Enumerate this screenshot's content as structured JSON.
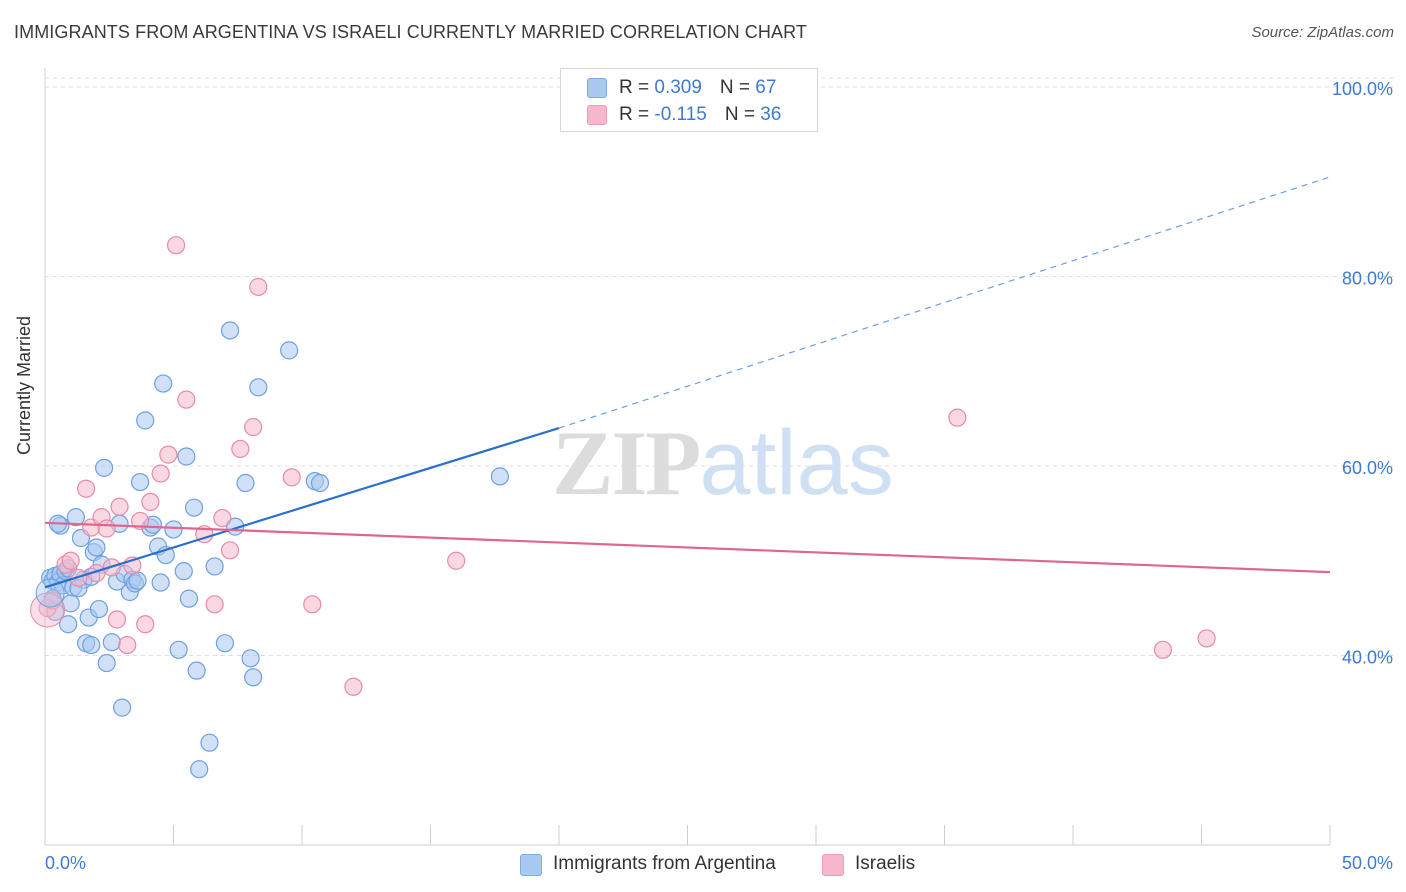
{
  "title": "IMMIGRANTS FROM ARGENTINA VS ISRAELI CURRENTLY MARRIED CORRELATION CHART",
  "source": "Source: ZipAtlas.com",
  "watermark": {
    "part1": "ZIP",
    "part2": "atlas"
  },
  "legend": {
    "rows": [
      {
        "r_label": "R = ",
        "r_value": "0.309",
        "n_label": "N = ",
        "n_value": "67",
        "color": "#a9c9f0"
      },
      {
        "r_label": "R = ",
        "r_value": "-0.115",
        "n_label": "N = ",
        "n_value": "36",
        "color": "#f5b8cb"
      }
    ]
  },
  "bottom_legend": [
    {
      "label": "Immigrants from Argentina",
      "color": "#a9c9f0"
    },
    {
      "label": "Israelis",
      "color": "#f5b8cb"
    }
  ],
  "chart_data": {
    "type": "scatter",
    "title": "IMMIGRANTS FROM ARGENTINA VS ISRAELI CURRENTLY MARRIED CORRELATION CHART",
    "ylabel": "Currently Married",
    "xlabel": "",
    "xlim": [
      0,
      50
    ],
    "ylim": [
      20,
      102
    ],
    "x_tick_labels": [
      "0.0%",
      "50.0%"
    ],
    "y_ticks": [
      40,
      60,
      80,
      100
    ],
    "y_tick_labels": [
      "40.0%",
      "60.0%",
      "80.0%",
      "100.0%"
    ],
    "grid": true,
    "legend_position": "top-center",
    "series": [
      {
        "name": "Immigrants from Argentina",
        "color": "#6fa0e0",
        "fill": "#a9c9f0",
        "trend": {
          "x0": 0,
          "y0": 47.2,
          "x1": 20,
          "y1": 64.0,
          "dashed_to_x": 50,
          "dashed_to_y": 90.5,
          "color": "#2b6fce"
        },
        "points": [
          [
            0.2,
            48.2
          ],
          [
            0.3,
            47.9
          ],
          [
            0.4,
            48.4
          ],
          [
            0.5,
            47.7
          ],
          [
            0.6,
            48.6
          ],
          [
            0.7,
            47.4
          ],
          [
            0.8,
            48.9
          ],
          [
            0.9,
            49.2
          ],
          [
            0.3,
            46.0
          ],
          [
            0.4,
            44.6
          ],
          [
            0.6,
            53.7
          ],
          [
            0.9,
            43.3
          ],
          [
            1.0,
            45.5
          ],
          [
            1.1,
            47.2
          ],
          [
            1.2,
            54.6
          ],
          [
            1.4,
            52.4
          ],
          [
            1.5,
            48.0
          ],
          [
            1.6,
            41.3
          ],
          [
            1.7,
            44.0
          ],
          [
            1.8,
            41.1
          ],
          [
            1.9,
            50.9
          ],
          [
            2.0,
            51.4
          ],
          [
            2.1,
            44.9
          ],
          [
            2.3,
            59.8
          ],
          [
            2.4,
            39.2
          ],
          [
            2.6,
            41.4
          ],
          [
            2.8,
            47.8
          ],
          [
            2.9,
            53.9
          ],
          [
            3.1,
            48.6
          ],
          [
            3.3,
            46.7
          ],
          [
            3.4,
            48.0
          ],
          [
            3.5,
            47.6
          ],
          [
            3.6,
            47.9
          ],
          [
            3.7,
            58.3
          ],
          [
            3.9,
            64.8
          ],
          [
            4.1,
            53.5
          ],
          [
            4.2,
            53.8
          ],
          [
            4.4,
            51.5
          ],
          [
            4.5,
            47.7
          ],
          [
            4.6,
            68.7
          ],
          [
            4.7,
            50.6
          ],
          [
            5.0,
            53.3
          ],
          [
            5.2,
            40.6
          ],
          [
            5.4,
            48.9
          ],
          [
            5.5,
            61.0
          ],
          [
            5.6,
            46.0
          ],
          [
            5.8,
            55.6
          ],
          [
            5.9,
            38.4
          ],
          [
            6.0,
            28.0
          ],
          [
            6.4,
            30.8
          ],
          [
            6.6,
            49.4
          ],
          [
            7.0,
            41.3
          ],
          [
            7.2,
            74.3
          ],
          [
            7.4,
            53.6
          ],
          [
            7.8,
            58.2
          ],
          [
            8.0,
            39.7
          ],
          [
            8.1,
            37.7
          ],
          [
            8.3,
            68.3
          ],
          [
            9.5,
            72.2
          ],
          [
            10.5,
            58.4
          ],
          [
            10.7,
            58.2
          ],
          [
            17.7,
            58.9
          ],
          [
            3.0,
            34.5
          ],
          [
            1.3,
            47.1
          ],
          [
            2.2,
            49.6
          ],
          [
            0.5,
            53.9
          ],
          [
            1.8,
            48.3
          ]
        ]
      },
      {
        "name": "Israelis",
        "color": "#e88aa9",
        "fill": "#f5b8cb",
        "trend": {
          "x0": 0,
          "y0": 54.0,
          "x1": 50,
          "y1": 48.8,
          "color": "#e0668e"
        },
        "points": [
          [
            0.1,
            45.0
          ],
          [
            0.3,
            45.8
          ],
          [
            0.8,
            49.6
          ],
          [
            1.0,
            50.0
          ],
          [
            1.6,
            57.6
          ],
          [
            1.8,
            53.5
          ],
          [
            2.0,
            48.7
          ],
          [
            2.2,
            54.6
          ],
          [
            2.4,
            53.4
          ],
          [
            2.6,
            49.3
          ],
          [
            2.8,
            43.8
          ],
          [
            2.9,
            55.7
          ],
          [
            3.2,
            41.1
          ],
          [
            3.4,
            49.5
          ],
          [
            3.7,
            54.2
          ],
          [
            3.9,
            43.3
          ],
          [
            4.1,
            56.2
          ],
          [
            4.5,
            59.2
          ],
          [
            4.8,
            61.2
          ],
          [
            5.1,
            83.3
          ],
          [
            5.5,
            67.0
          ],
          [
            6.2,
            52.8
          ],
          [
            6.6,
            45.4
          ],
          [
            6.9,
            54.5
          ],
          [
            7.2,
            51.1
          ],
          [
            7.6,
            61.8
          ],
          [
            8.1,
            64.1
          ],
          [
            8.3,
            78.9
          ],
          [
            9.6,
            58.8
          ],
          [
            10.4,
            45.4
          ],
          [
            12.0,
            36.7
          ],
          [
            16.0,
            50.0
          ],
          [
            35.5,
            65.1
          ],
          [
            43.5,
            40.6
          ],
          [
            45.2,
            41.8
          ],
          [
            1.3,
            48.2
          ]
        ]
      }
    ]
  }
}
